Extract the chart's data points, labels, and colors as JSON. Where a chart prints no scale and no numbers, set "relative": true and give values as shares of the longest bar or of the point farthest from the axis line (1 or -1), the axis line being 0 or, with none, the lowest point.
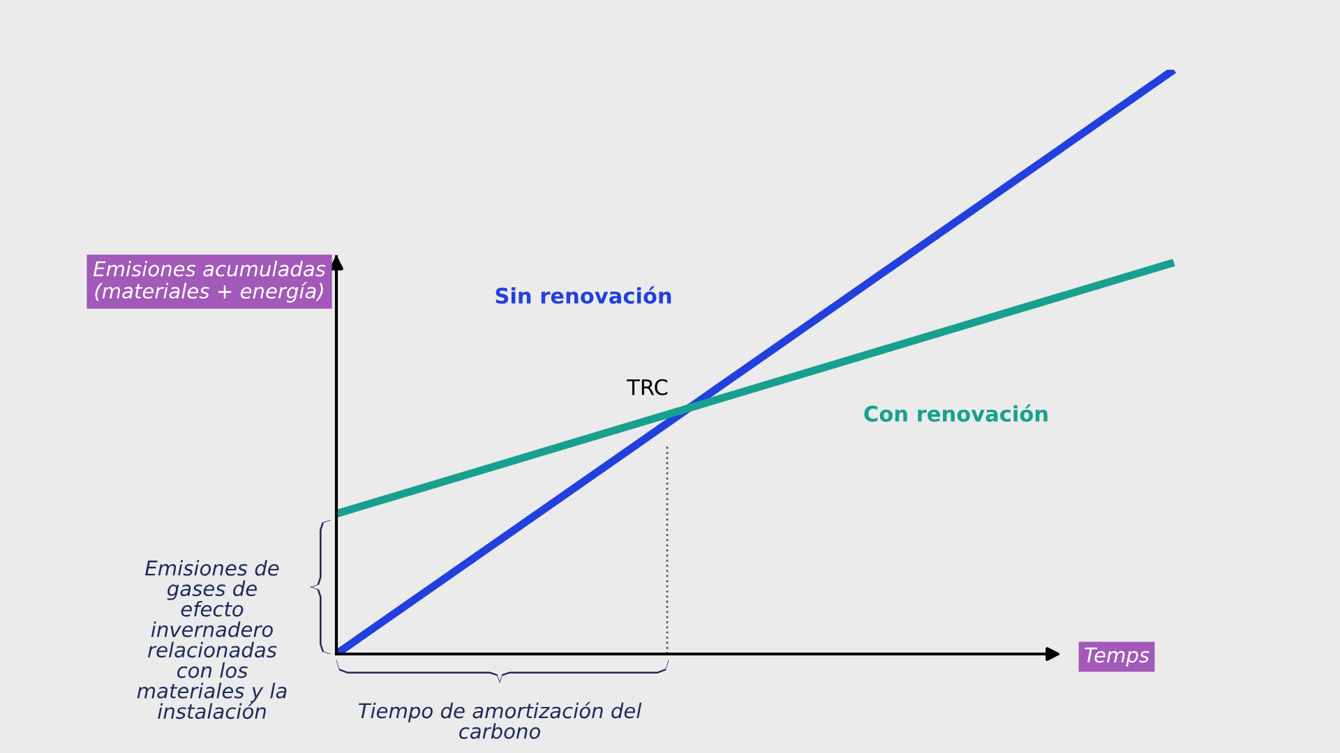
{
  "chart_data": {
    "type": "line",
    "relative": true,
    "tick_labels": false,
    "legend": false,
    "marker": "none",
    "line_style": "solid",
    "xlabel": "Temps",
    "ylabel": "Emisiones acumuladas\n(materiales + energía)",
    "categories": [
      null,
      null
    ],
    "series": [
      {
        "name": "Sin renovación",
        "color": "#2140de",
        "values": [
          0,
          1
        ]
      },
      {
        "name": "Con renovación",
        "color": "#17a08f",
        "values": [
          0.24,
          0.67
        ]
      }
    ],
    "annotations": [
      "TRC",
      "Emisiones de\ngases de\nefecto\ninvernadero\nrelacionadas\ncon los\nmateriales y la\ninstalación",
      "Tiempo de amortización del\ncarbono"
    ]
  }
}
